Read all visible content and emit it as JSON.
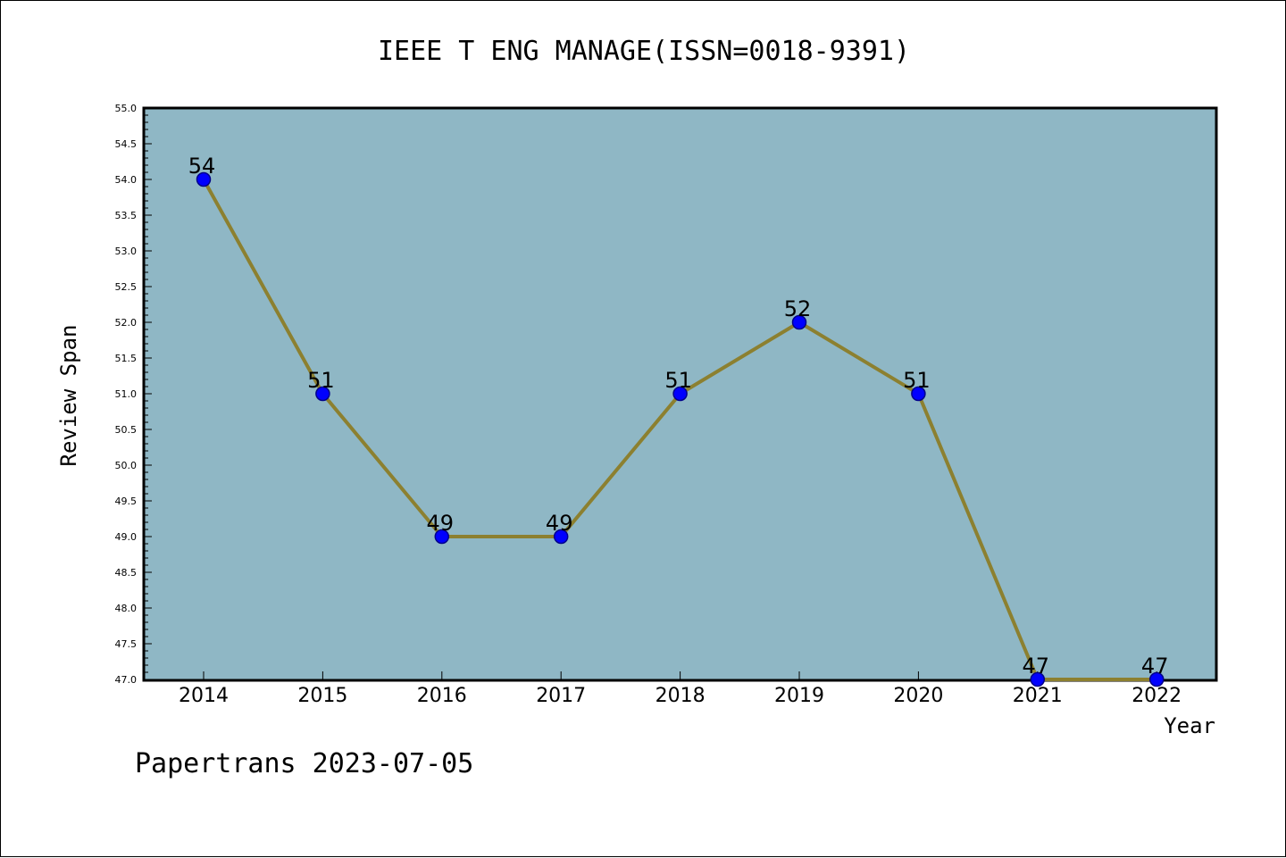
{
  "chart_data": {
    "type": "line",
    "title": "IEEE T ENG MANAGE(ISSN=0018-9391)",
    "xlabel": "Year",
    "ylabel": "Review Span",
    "categories": [
      "2014",
      "2015",
      "2016",
      "2017",
      "2018",
      "2019",
      "2020",
      "2021",
      "2022"
    ],
    "series": [
      {
        "values": [
          54,
          51,
          49,
          49,
          51,
          52,
          51,
          47,
          47
        ]
      }
    ],
    "data_labels": [
      "54",
      "51",
      "49",
      "49",
      "51",
      "52",
      "51",
      "47",
      "47"
    ],
    "ylim": [
      47.0,
      55.0
    ],
    "y_ticks": [
      "47.0",
      "47.5",
      "48.0",
      "48.5",
      "49.0",
      "49.5",
      "50.0",
      "50.5",
      "51.0",
      "51.5",
      "52.0",
      "52.5",
      "53.0",
      "53.5",
      "54.0",
      "54.5",
      "55.0"
    ],
    "grid": false,
    "legend": "none"
  },
  "footer": "Papertrans 2023-07-05",
  "colors": {
    "plot_background": "#8fb7c5",
    "line": "#8c8030",
    "marker": "#0000ff",
    "marker_edge": "#00008b"
  }
}
